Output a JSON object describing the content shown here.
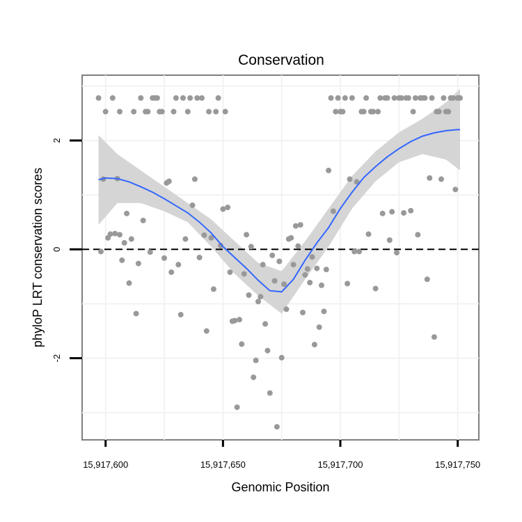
{
  "chart_data": {
    "type": "scatter",
    "title": "Conservation",
    "xlabel": "Genomic Position",
    "ylabel": "phyloP LRT conservation scores",
    "xlim": [
      15917590,
      15917759
    ],
    "ylim": [
      -3.5,
      3.2
    ],
    "xticks": [
      15917600,
      15917650,
      15917700,
      15917750
    ],
    "xtick_labels": [
      "15,917,600",
      "15,917,650",
      "15,917,700",
      "15,917,750"
    ],
    "yticks": [
      -2,
      0,
      2
    ],
    "ytick_labels": [
      "-2",
      "0",
      "2"
    ],
    "grid": true,
    "reference_line": {
      "y": 0,
      "style": "dashed"
    },
    "colors": {
      "points": "#999999",
      "smooth": "#3366ff",
      "band": "#d3d3d3",
      "border": "#7f7f7f",
      "grid": "#f2f2f2"
    },
    "series": [
      {
        "name": "scores",
        "points": [
          [
            15917597,
            2.78
          ],
          [
            15917598,
            -0.04
          ],
          [
            15917599,
            1.29
          ],
          [
            15917600,
            2.53
          ],
          [
            15917601,
            0.21
          ],
          [
            15917602,
            0.28
          ],
          [
            15917603,
            2.78
          ],
          [
            15917604,
            0.29
          ],
          [
            15917605,
            1.3
          ],
          [
            15917606,
            0.27
          ],
          [
            15917606,
            2.53
          ],
          [
            15917607,
            -0.2
          ],
          [
            15917608,
            0.12
          ],
          [
            15917609,
            0.66
          ],
          [
            15917610,
            -0.62
          ],
          [
            15917611,
            0.19
          ],
          [
            15917612,
            2.53
          ],
          [
            15917613,
            -1.18
          ],
          [
            15917614,
            -0.26
          ],
          [
            15917615,
            2.78
          ],
          [
            15917616,
            0.53
          ],
          [
            15917617,
            2.53
          ],
          [
            15917618,
            2.53
          ],
          [
            15917619,
            -0.05
          ],
          [
            15917620,
            2.78
          ],
          [
            15917621,
            2.78
          ],
          [
            15917622,
            2.78
          ],
          [
            15917623,
            2.53
          ],
          [
            15917624,
            2.53
          ],
          [
            15917625,
            -0.16
          ],
          [
            15917626,
            1.22
          ],
          [
            15917627,
            1.25
          ],
          [
            15917628,
            -0.42
          ],
          [
            15917629,
            2.53
          ],
          [
            15917630,
            2.78
          ],
          [
            15917631,
            -0.28
          ],
          [
            15917632,
            -1.2
          ],
          [
            15917633,
            2.78
          ],
          [
            15917634,
            0.19
          ],
          [
            15917635,
            2.53
          ],
          [
            15917636,
            2.78
          ],
          [
            15917637,
            0.81
          ],
          [
            15917638,
            1.29
          ],
          [
            15917639,
            2.78
          ],
          [
            15917640,
            -0.15
          ],
          [
            15917641,
            2.78
          ],
          [
            15917642,
            0.26
          ],
          [
            15917643,
            -1.5
          ],
          [
            15917644,
            2.53
          ],
          [
            15917645,
            0.21
          ],
          [
            15917646,
            -0.73
          ],
          [
            15917647,
            2.53
          ],
          [
            15917648,
            2.78
          ],
          [
            15917649,
            0.07
          ],
          [
            15917650,
            0.74
          ],
          [
            15917651,
            2.53
          ],
          [
            15917652,
            0.77
          ],
          [
            15917653,
            -0.42
          ],
          [
            15917654,
            -1.32
          ],
          [
            15917655,
            -1.31
          ],
          [
            15917656,
            -2.9
          ],
          [
            15917657,
            -1.29
          ],
          [
            15917658,
            -1.74
          ],
          [
            15917659,
            -0.45
          ],
          [
            15917660,
            0.27
          ],
          [
            15917661,
            -0.84
          ],
          [
            15917662,
            0.05
          ],
          [
            15917663,
            -2.35
          ],
          [
            15917664,
            -2.04
          ],
          [
            15917665,
            -0.96
          ],
          [
            15917666,
            -0.87
          ],
          [
            15917667,
            -0.28
          ],
          [
            15917668,
            -1.37
          ],
          [
            15917669,
            -1.86
          ],
          [
            15917670,
            -2.64
          ],
          [
            15917671,
            -0.11
          ],
          [
            15917672,
            -0.58
          ],
          [
            15917673,
            -3.26
          ],
          [
            15917674,
            -0.22
          ],
          [
            15917675,
            -1.99
          ],
          [
            15917676,
            -0.64
          ],
          [
            15917677,
            -1.1
          ],
          [
            15917678,
            0.19
          ],
          [
            15917679,
            0.21
          ],
          [
            15917680,
            -0.28
          ],
          [
            15917681,
            0.43
          ],
          [
            15917682,
            0.06
          ],
          [
            15917683,
            0.45
          ],
          [
            15917684,
            -1.16
          ],
          [
            15917685,
            -0.47
          ],
          [
            15917686,
            -0.36
          ],
          [
            15917687,
            -0.61
          ],
          [
            15917688,
            -0.14
          ],
          [
            15917689,
            -1.75
          ],
          [
            15917690,
            -0.35
          ],
          [
            15917691,
            -1.43
          ],
          [
            15917692,
            -0.66
          ],
          [
            15917693,
            -1.14
          ],
          [
            15917694,
            -0.37
          ],
          [
            15917695,
            1.45
          ],
          [
            15917696,
            2.78
          ],
          [
            15917697,
            0.7
          ],
          [
            15917698,
            2.53
          ],
          [
            15917699,
            2.78
          ],
          [
            15917700,
            2.53
          ],
          [
            15917701,
            2.53
          ],
          [
            15917702,
            2.78
          ],
          [
            15917703,
            -0.63
          ],
          [
            15917704,
            1.29
          ],
          [
            15917705,
            2.78
          ],
          [
            15917706,
            -0.04
          ],
          [
            15917707,
            1.24
          ],
          [
            15917708,
            -0.04
          ],
          [
            15917709,
            2.53
          ],
          [
            15917710,
            2.53
          ],
          [
            15917711,
            2.78
          ],
          [
            15917712,
            0.28
          ],
          [
            15917713,
            2.53
          ],
          [
            15917714,
            2.53
          ],
          [
            15917715,
            -0.72
          ],
          [
            15917716,
            2.53
          ],
          [
            15917717,
            2.78
          ],
          [
            15917718,
            0.66
          ],
          [
            15917719,
            2.78
          ],
          [
            15917720,
            2.78
          ],
          [
            15917721,
            0.17
          ],
          [
            15917722,
            0.69
          ],
          [
            15917723,
            2.78
          ],
          [
            15917724,
            -0.06
          ],
          [
            15917725,
            2.78
          ],
          [
            15917726,
            2.78
          ],
          [
            15917727,
            0.67
          ],
          [
            15917728,
            2.78
          ],
          [
            15917729,
            2.78
          ],
          [
            15917730,
            0.71
          ],
          [
            15917731,
            2.53
          ],
          [
            15917732,
            2.78
          ],
          [
            15917733,
            0.27
          ],
          [
            15917734,
            2.78
          ],
          [
            15917735,
            2.78
          ],
          [
            15917736,
            2.78
          ],
          [
            15917737,
            -0.55
          ],
          [
            15917738,
            1.31
          ],
          [
            15917739,
            2.78
          ],
          [
            15917740,
            -1.61
          ],
          [
            15917741,
            2.53
          ],
          [
            15917742,
            2.53
          ],
          [
            15917743,
            1.29
          ],
          [
            15917744,
            2.78
          ],
          [
            15917745,
            2.53
          ],
          [
            15917746,
            2.53
          ],
          [
            15917747,
            2.78
          ],
          [
            15917748,
            2.78
          ],
          [
            15917749,
            1.1
          ],
          [
            15917750,
            2.78
          ],
          [
            15917751,
            2.78
          ]
        ]
      },
      {
        "name": "loess",
        "points": [
          [
            15917597,
            1.28
          ],
          [
            15917600,
            1.31
          ],
          [
            15917605,
            1.3
          ],
          [
            15917610,
            1.24
          ],
          [
            15917615,
            1.15
          ],
          [
            15917620,
            1.05
          ],
          [
            15917625,
            0.93
          ],
          [
            15917630,
            0.8
          ],
          [
            15917635,
            0.67
          ],
          [
            15917640,
            0.5
          ],
          [
            15917645,
            0.3
          ],
          [
            15917650,
            0.05
          ],
          [
            15917655,
            -0.15
          ],
          [
            15917660,
            -0.35
          ],
          [
            15917665,
            -0.57
          ],
          [
            15917670,
            -0.76
          ],
          [
            15917675,
            -0.78
          ],
          [
            15917680,
            -0.55
          ],
          [
            15917685,
            -0.2
          ],
          [
            15917690,
            0.12
          ],
          [
            15917695,
            0.4
          ],
          [
            15917700,
            0.75
          ],
          [
            15917705,
            1.05
          ],
          [
            15917710,
            1.32
          ],
          [
            15917715,
            1.52
          ],
          [
            15917720,
            1.7
          ],
          [
            15917725,
            1.85
          ],
          [
            15917730,
            1.98
          ],
          [
            15917735,
            2.08
          ],
          [
            15917740,
            2.14
          ],
          [
            15917745,
            2.18
          ],
          [
            15917750,
            2.2
          ],
          [
            15917751,
            2.2
          ]
        ]
      }
    ],
    "confidence_band": {
      "x": [
        15917597,
        15917605,
        15917615,
        15917625,
        15917635,
        15917645,
        15917655,
        15917665,
        15917675,
        15917685,
        15917695,
        15917705,
        15917715,
        15917725,
        15917735,
        15917745,
        15917751
      ],
      "lower": [
        0.45,
        0.85,
        0.85,
        0.7,
        0.5,
        0.05,
        -0.45,
        -0.85,
        -1.18,
        -0.55,
        0.05,
        0.75,
        1.25,
        1.6,
        1.75,
        1.65,
        1.45
      ],
      "upper": [
        2.1,
        1.75,
        1.45,
        1.15,
        0.85,
        0.55,
        0.15,
        -0.25,
        -0.4,
        0.15,
        0.75,
        1.35,
        1.8,
        2.15,
        2.4,
        2.7,
        2.95
      ]
    }
  }
}
